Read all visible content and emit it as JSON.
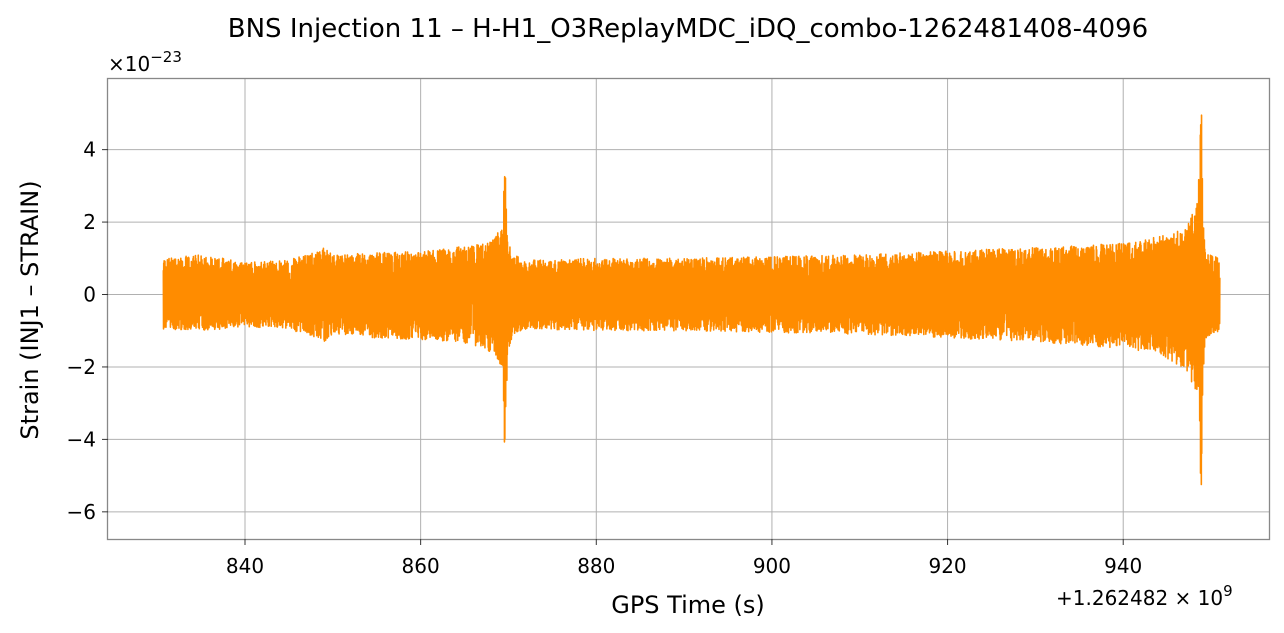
{
  "chart_data": {
    "type": "line",
    "title": "BNS Injection 11 – H-H1_O3ReplayMDC_iDQ_combo-1262481408-4096",
    "xlabel": "GPS Time (s)",
    "ylabel": "Strain (INJ1 – STRAIN)",
    "y_multiplier": "×10",
    "y_multiplier_exp": "−23",
    "x_offset": "+1.262482 × 10",
    "x_offset_exp": "9",
    "x_offset_value": 1262482000,
    "xlim": [
      824.4,
      956.6
    ],
    "ylim": [
      -6.75,
      5.95
    ],
    "x_ticks": [
      840,
      860,
      880,
      900,
      920,
      940
    ],
    "x_tick_labels": [
      "840",
      "860",
      "880",
      "900",
      "920",
      "940"
    ],
    "y_ticks": [
      -6,
      -4,
      -2,
      0,
      2,
      4
    ],
    "y_tick_labels": [
      "−6",
      "−4",
      "−2",
      "0",
      "2",
      "4"
    ],
    "grid": true,
    "line_color": "#ff8c00",
    "series": [
      {
        "x_range": [
          830.7,
          951.0
        ],
        "envelope": {
          "x": [
            830.7,
            835,
            840,
            845,
            849,
            850,
            855,
            860,
            864,
            867,
            868.5,
            869.3,
            869.6,
            869.9,
            870.5,
            872,
            880,
            890,
            900,
            910,
            920,
            930,
            935,
            940,
            944,
            946,
            947.5,
            948.5,
            948.9,
            949.1,
            949.3,
            950,
            951.0
          ],
          "upper": [
            1.0,
            1.1,
            0.9,
            0.95,
            1.3,
            1.1,
            1.15,
            1.2,
            1.3,
            1.4,
            1.6,
            1.9,
            3.7,
            1.5,
            1.1,
            0.95,
            1.0,
            1.0,
            1.05,
            1.1,
            1.2,
            1.3,
            1.35,
            1.45,
            1.6,
            1.8,
            2.0,
            2.6,
            5.4,
            2.2,
            1.3,
            1.1,
            1.0
          ],
          "lower": [
            -0.95,
            -1.0,
            -0.9,
            -0.95,
            -1.3,
            -1.1,
            -1.2,
            -1.25,
            -1.3,
            -1.45,
            -1.7,
            -2.1,
            -4.6,
            -1.6,
            -1.1,
            -0.95,
            -1.0,
            -1.0,
            -1.05,
            -1.1,
            -1.2,
            -1.3,
            -1.4,
            -1.5,
            -1.65,
            -1.9,
            -2.3,
            -2.8,
            -6.2,
            -2.4,
            -1.3,
            -1.1,
            -1.0
          ]
        }
      }
    ]
  }
}
